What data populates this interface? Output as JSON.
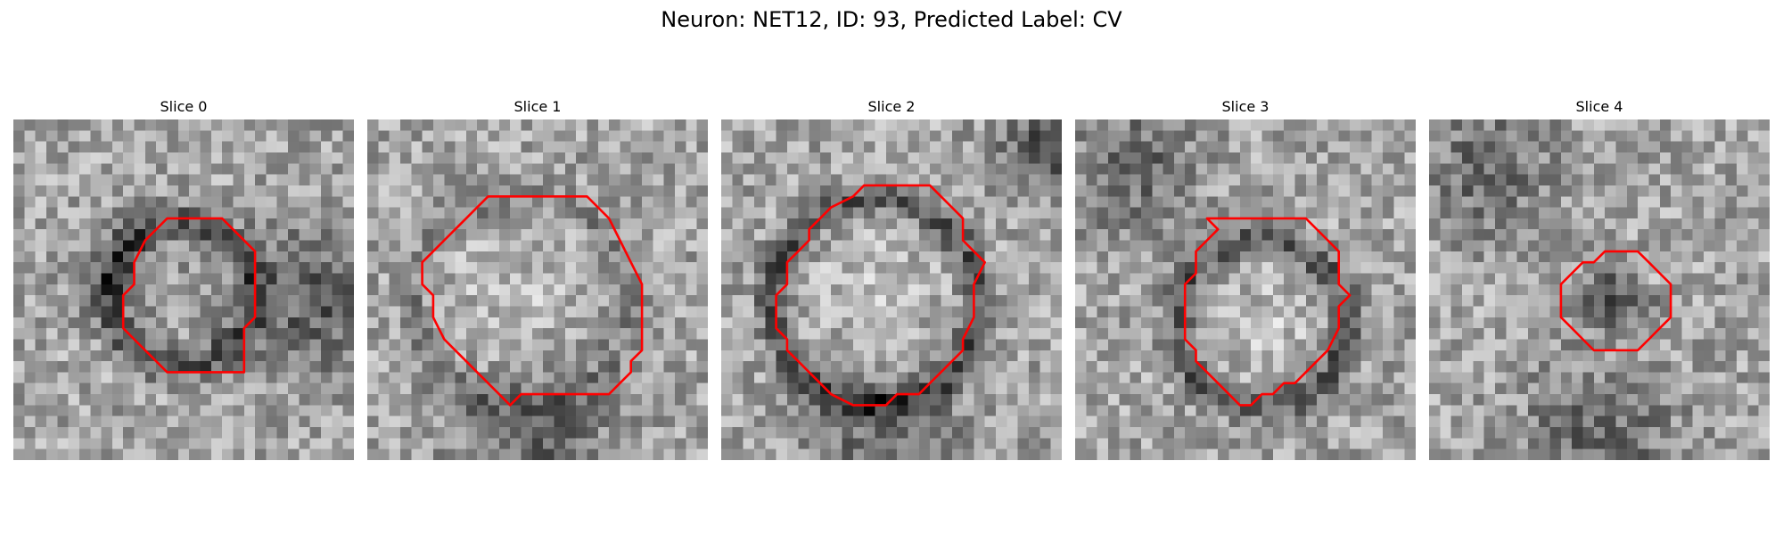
{
  "figure": {
    "title": "Neuron: NET12, ID: 93, Predicted Label: CV",
    "contour_color": "#ff0000",
    "colormap": "gray",
    "grid_cells": 31,
    "slices": [
      {
        "title": "Slice 0",
        "ring": "dark",
        "core": "mid",
        "dark_patches": [
          "right",
          "upper-left"
        ],
        "contour_pixels": [
          [
            14,
            9
          ],
          [
            19,
            9
          ],
          [
            22,
            12
          ],
          [
            22,
            18
          ],
          [
            21,
            19
          ],
          [
            21,
            23
          ],
          [
            14,
            23
          ],
          [
            11,
            20
          ],
          [
            10,
            19
          ],
          [
            10,
            16
          ],
          [
            11,
            15
          ],
          [
            11,
            13
          ],
          [
            12,
            11
          ]
        ]
      },
      {
        "title": "Slice 1",
        "ring": "faint",
        "core": "light",
        "dark_patches": [
          "bottom"
        ],
        "contour_pixels": [
          [
            11,
            7
          ],
          [
            20,
            7
          ],
          [
            22,
            9
          ],
          [
            23,
            11
          ],
          [
            24,
            13
          ],
          [
            25,
            15
          ],
          [
            25,
            21
          ],
          [
            24,
            22
          ],
          [
            24,
            23
          ],
          [
            23,
            24
          ],
          [
            22,
            25
          ],
          [
            14,
            25
          ],
          [
            13,
            26
          ],
          [
            11,
            24
          ],
          [
            10,
            23
          ],
          [
            9,
            22
          ],
          [
            8,
            21
          ],
          [
            7,
            20
          ],
          [
            6,
            18
          ],
          [
            6,
            16
          ],
          [
            5,
            15
          ],
          [
            5,
            13
          ],
          [
            6,
            12
          ],
          [
            7,
            11
          ],
          [
            8,
            10
          ],
          [
            9,
            9
          ],
          [
            10,
            8
          ]
        ]
      },
      {
        "title": "Slice 2",
        "ring": "dark",
        "core": "light",
        "dark_patches": [
          "top-right",
          "bottom"
        ],
        "contour_pixels": [
          [
            13,
            6
          ],
          [
            19,
            6
          ],
          [
            20,
            7
          ],
          [
            22,
            9
          ],
          [
            22,
            11
          ],
          [
            23,
            12
          ],
          [
            24,
            13
          ],
          [
            23,
            15
          ],
          [
            23,
            18
          ],
          [
            22,
            20
          ],
          [
            22,
            21
          ],
          [
            21,
            22
          ],
          [
            20,
            23
          ],
          [
            19,
            24
          ],
          [
            18,
            25
          ],
          [
            16,
            25
          ],
          [
            15,
            26
          ],
          [
            12,
            26
          ],
          [
            10,
            25
          ],
          [
            9,
            24
          ],
          [
            8,
            23
          ],
          [
            7,
            22
          ],
          [
            6,
            21
          ],
          [
            6,
            20
          ],
          [
            5,
            19
          ],
          [
            5,
            16
          ],
          [
            6,
            15
          ],
          [
            6,
            13
          ],
          [
            7,
            12
          ],
          [
            8,
            11
          ],
          [
            8,
            10
          ],
          [
            9,
            9
          ],
          [
            10,
            8
          ],
          [
            12,
            7
          ]
        ]
      },
      {
        "title": "Slice 3",
        "ring": "dark",
        "core": "light",
        "dark_patches": [
          "top-left"
        ],
        "contour_pixels": [
          [
            12,
            9
          ],
          [
            21,
            9
          ],
          [
            23,
            11
          ],
          [
            24,
            12
          ],
          [
            24,
            15
          ],
          [
            25,
            16
          ],
          [
            24,
            17
          ],
          [
            24,
            19
          ],
          [
            23,
            21
          ],
          [
            22,
            22
          ],
          [
            21,
            23
          ],
          [
            20,
            24
          ],
          [
            19,
            24
          ],
          [
            18,
            25
          ],
          [
            17,
            25
          ],
          [
            16,
            26
          ],
          [
            15,
            26
          ],
          [
            14,
            25
          ],
          [
            13,
            24
          ],
          [
            12,
            23
          ],
          [
            11,
            22
          ],
          [
            11,
            21
          ],
          [
            10,
            20
          ],
          [
            10,
            15
          ],
          [
            11,
            14
          ],
          [
            11,
            12
          ],
          [
            12,
            11
          ],
          [
            13,
            10
          ]
        ]
      },
      {
        "title": "Slice 4",
        "ring": "none",
        "core": "dark",
        "dark_patches": [
          "top-left",
          "bottom"
        ],
        "contour_pixels": [
          [
            16,
            12
          ],
          [
            19,
            12
          ],
          [
            20,
            13
          ],
          [
            21,
            14
          ],
          [
            22,
            15
          ],
          [
            22,
            18
          ],
          [
            21,
            19
          ],
          [
            20,
            20
          ],
          [
            19,
            21
          ],
          [
            15,
            21
          ],
          [
            14,
            20
          ],
          [
            13,
            19
          ],
          [
            12,
            18
          ],
          [
            12,
            15
          ],
          [
            13,
            14
          ],
          [
            14,
            13
          ],
          [
            15,
            13
          ]
        ]
      }
    ]
  }
}
